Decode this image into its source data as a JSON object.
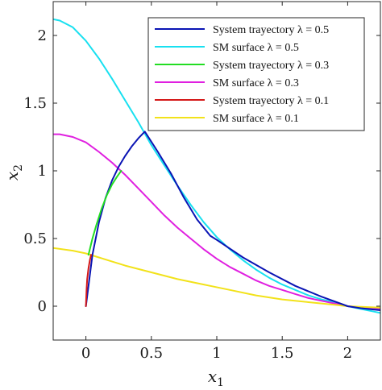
{
  "chart_data": {
    "type": "line",
    "title": "",
    "xlabel": {
      "base": "x",
      "sub": "1"
    },
    "ylabel": {
      "base": "x",
      "sub": "2"
    },
    "xlim": [
      -0.25,
      2.25
    ],
    "ylim": [
      -0.25,
      2.25
    ],
    "xticks": [
      {
        "value": 0,
        "label": "0"
      },
      {
        "value": 0.5,
        "label": "0.5"
      },
      {
        "value": 1,
        "label": "1"
      },
      {
        "value": 1.5,
        "label": "1.5"
      },
      {
        "value": 2,
        "label": "2"
      }
    ],
    "yticks": [
      {
        "value": 0,
        "label": "0"
      },
      {
        "value": 0.5,
        "label": "0.5"
      },
      {
        "value": 1,
        "label": "1"
      },
      {
        "value": 1.5,
        "label": "1.5"
      },
      {
        "value": 2,
        "label": "2"
      }
    ],
    "grid": false,
    "legend_position": "top-right",
    "series": [
      {
        "name": "System trayectory λ = 0.5",
        "color": "#0a14b4",
        "x": [
          0,
          0.05,
          0.1,
          0.15,
          0.2,
          0.25,
          0.3,
          0.35,
          0.4,
          0.45,
          0.55,
          0.65,
          0.75,
          0.85,
          0.95,
          1.0,
          1.2,
          1.4,
          1.6,
          1.8,
          1.9,
          2.0,
          2.1,
          2.25
        ],
        "y": [
          0,
          0.38,
          0.62,
          0.8,
          0.93,
          1.03,
          1.11,
          1.18,
          1.24,
          1.29,
          1.14,
          0.98,
          0.8,
          0.64,
          0.52,
          0.49,
          0.36,
          0.25,
          0.15,
          0.07,
          0.035,
          0.0,
          -0.015,
          -0.03
        ]
      },
      {
        "name": "SM surface λ = 0.5",
        "color": "#18e0f0",
        "x": [
          -0.25,
          -0.2,
          -0.1,
          0.0,
          0.1,
          0.2,
          0.3,
          0.4,
          0.5,
          0.6,
          0.7,
          0.8,
          0.9,
          1.0,
          1.1,
          1.2,
          1.3,
          1.4,
          1.5,
          1.6,
          1.7,
          1.8,
          1.9,
          2.0,
          2.1,
          2.2,
          2.25
        ],
        "y": [
          2.12,
          2.11,
          2.06,
          1.96,
          1.83,
          1.68,
          1.52,
          1.36,
          1.19,
          1.04,
          0.89,
          0.75,
          0.62,
          0.51,
          0.42,
          0.34,
          0.27,
          0.21,
          0.16,
          0.12,
          0.08,
          0.05,
          0.03,
          0.0,
          -0.02,
          -0.04,
          -0.05
        ]
      },
      {
        "name": "System trayectory λ = 0.3",
        "color": "#22dd22",
        "x": [
          0.02,
          0.05,
          0.08,
          0.12,
          0.16,
          0.2,
          0.24,
          0.27
        ],
        "y": [
          0.38,
          0.5,
          0.6,
          0.72,
          0.82,
          0.9,
          0.96,
          1.0
        ]
      },
      {
        "name": "SM surface λ = 0.3",
        "color": "#e020e0",
        "x": [
          -0.25,
          -0.2,
          -0.1,
          0.0,
          0.1,
          0.2,
          0.3,
          0.4,
          0.5,
          0.6,
          0.7,
          0.8,
          0.9,
          1.0,
          1.1,
          1.2,
          1.3,
          1.4,
          1.5,
          1.6,
          1.7,
          1.8,
          1.9,
          2.0,
          2.1,
          2.2,
          2.25
        ],
        "y": [
          1.27,
          1.27,
          1.25,
          1.21,
          1.14,
          1.06,
          0.97,
          0.87,
          0.77,
          0.67,
          0.58,
          0.5,
          0.42,
          0.35,
          0.29,
          0.24,
          0.19,
          0.15,
          0.12,
          0.09,
          0.06,
          0.04,
          0.02,
          0.0,
          -0.01,
          -0.02,
          -0.02
        ]
      },
      {
        "name": "System trayectory λ = 0.1",
        "color": "#d41818",
        "x": [
          0.0,
          0.005,
          0.01,
          0.02,
          0.03,
          0.04
        ],
        "y": [
          0.0,
          0.12,
          0.2,
          0.28,
          0.34,
          0.38
        ]
      },
      {
        "name": "SM surface λ = 0.1",
        "color": "#f2e21a",
        "x": [
          -0.25,
          -0.1,
          0.0,
          0.1,
          0.2,
          0.3,
          0.5,
          0.7,
          0.9,
          1.1,
          1.3,
          1.5,
          1.7,
          1.9,
          2.0,
          2.1,
          2.25
        ],
        "y": [
          0.43,
          0.41,
          0.39,
          0.36,
          0.33,
          0.3,
          0.25,
          0.2,
          0.16,
          0.12,
          0.08,
          0.05,
          0.03,
          0.01,
          0.0,
          -0.005,
          -0.01
        ]
      }
    ]
  }
}
